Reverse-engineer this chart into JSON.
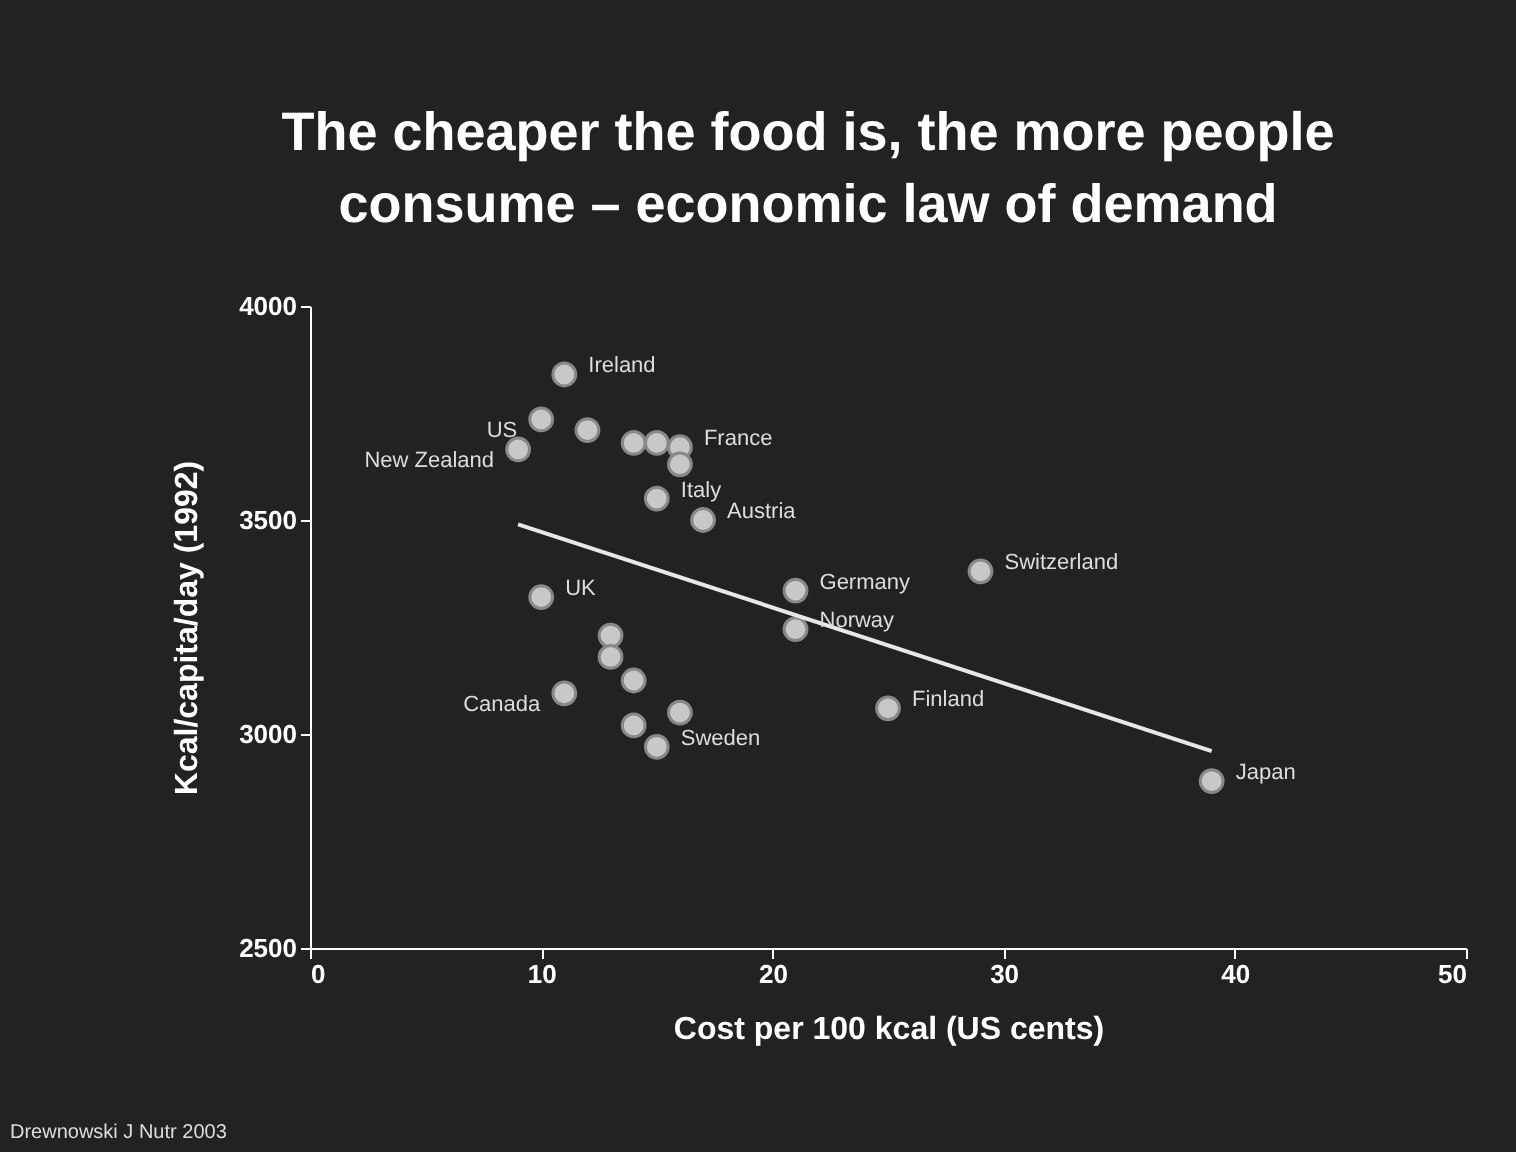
{
  "chart_data": {
    "type": "scatter",
    "title": "The cheaper the food is, the more people consume – economic law of demand",
    "xlabel": "Cost per 100 kcal  (US cents)",
    "ylabel": "Kcal/capita/day (1992)",
    "xlim": [
      0,
      50
    ],
    "xticks": [
      0,
      10,
      20,
      30,
      40,
      50
    ],
    "ylim": [
      2500,
      4000
    ],
    "yticks": [
      2500,
      3000,
      3500,
      4000
    ],
    "grid": false,
    "series": [
      {
        "marker": "circle",
        "color": "#c8c8c8",
        "x": [
          11,
          10,
          12,
          9,
          14,
          15,
          16,
          16,
          15,
          17,
          21,
          10,
          21,
          29,
          13,
          13,
          14,
          11,
          16,
          14,
          15,
          25,
          39
        ],
        "values": [
          3840,
          3735,
          3710,
          3665,
          3680,
          3680,
          3670,
          3630,
          3550,
          3500,
          3335,
          3320,
          3245,
          3380,
          3230,
          3180,
          3125,
          3095,
          3050,
          3020,
          2970,
          3060,
          2890
        ]
      },
      {
        "type": "line",
        "color": "#e8e8e8",
        "x": [
          9,
          39
        ],
        "values": [
          3490,
          2960
        ]
      }
    ],
    "annotations": [
      {
        "text": "Ireland",
        "x": 11,
        "y": 3840
      },
      {
        "text": "US",
        "x": 10,
        "y": 3735
      },
      {
        "text": "New Zealand",
        "x": 9,
        "y": 3665
      },
      {
        "text": "France",
        "x": 16,
        "y": 3670
      },
      {
        "text": "Italy",
        "x": 15,
        "y": 3550
      },
      {
        "text": "Austria",
        "x": 17,
        "y": 3500
      },
      {
        "text": "Germany",
        "x": 21,
        "y": 3335
      },
      {
        "text": "UK",
        "x": 10,
        "y": 3320
      },
      {
        "text": "Norway",
        "x": 21,
        "y": 3245
      },
      {
        "text": "Switzerland",
        "x": 29,
        "y": 3380
      },
      {
        "text": "Canada",
        "x": 11,
        "y": 3095
      },
      {
        "text": "Sweden",
        "x": 15,
        "y": 2970
      },
      {
        "text": "Finland",
        "x": 25,
        "y": 3060
      },
      {
        "text": "Japan",
        "x": 39,
        "y": 2890
      },
      "Drewnowski J Nutr 2003"
    ]
  }
}
